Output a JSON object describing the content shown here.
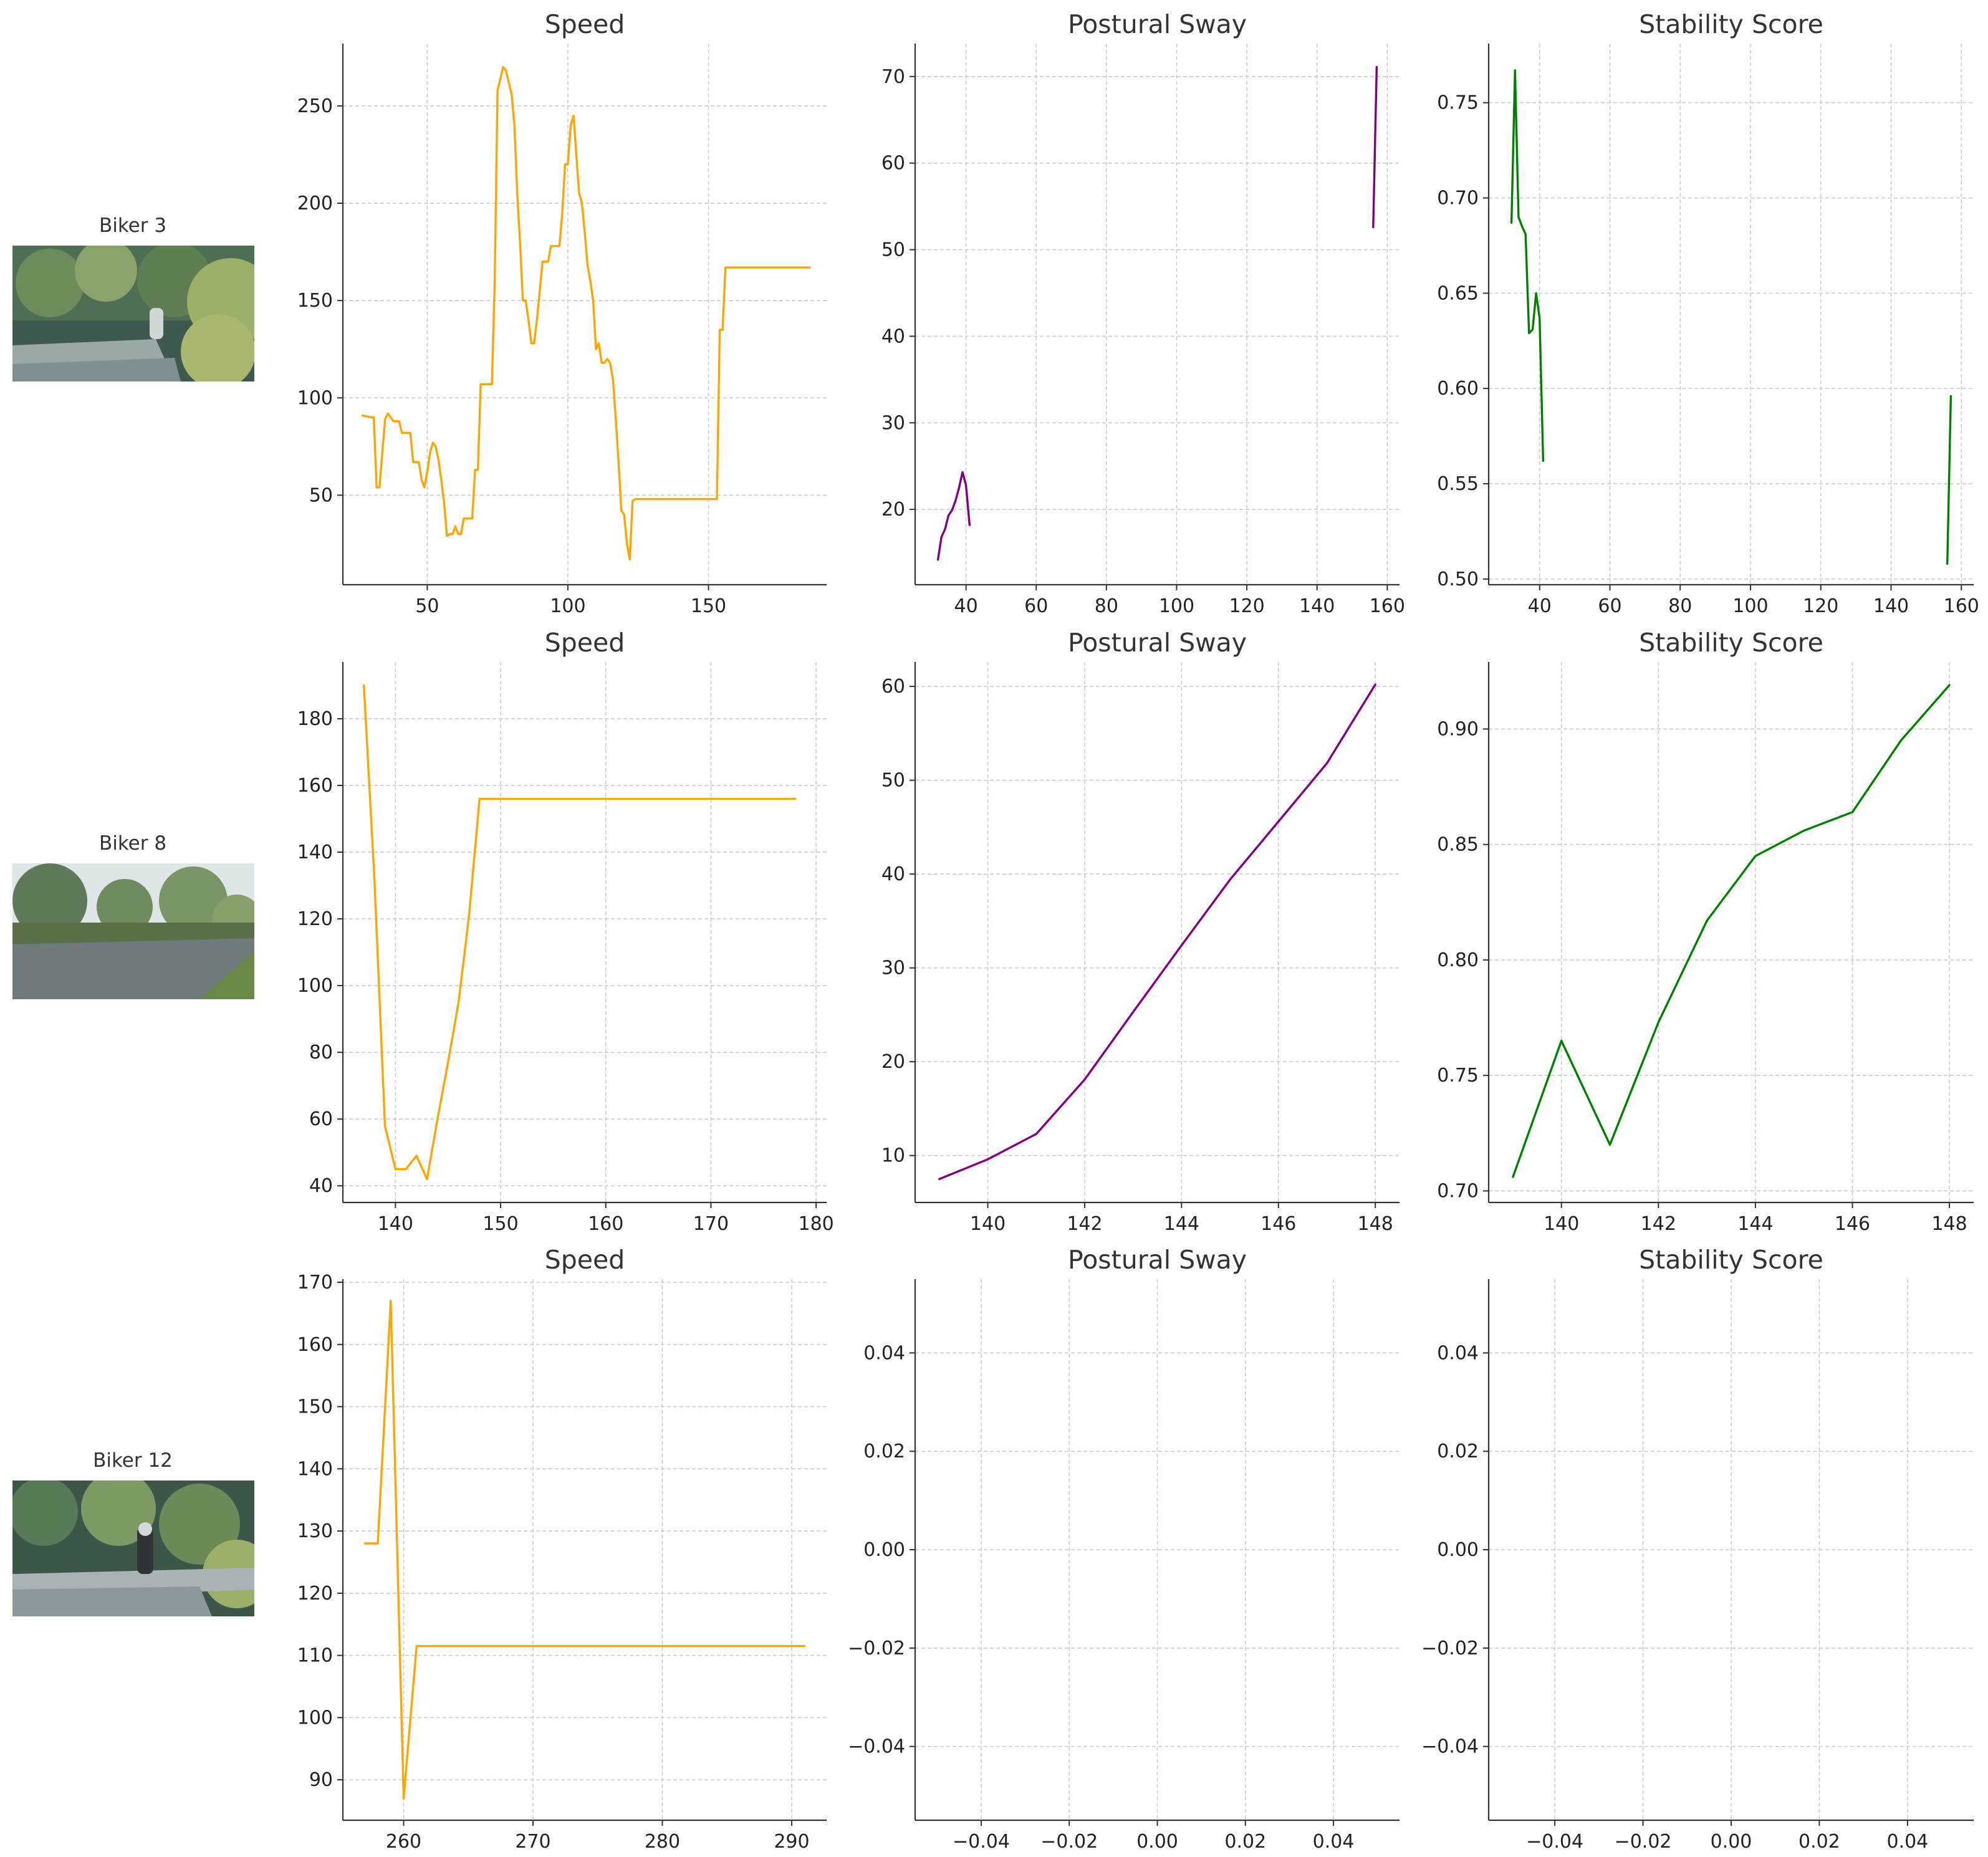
{
  "colors": {
    "speed": "#FFA500",
    "sway": "#800080",
    "stability": "#008000",
    "grid": "#cccccc",
    "axis": "#333333"
  },
  "rows": [
    {
      "label": "Biker 3",
      "thumb_icon": "road-forest-photo-icon",
      "thumb_rider": true
    },
    {
      "label": "Biker 8",
      "thumb_icon": "road-open-photo-icon",
      "thumb_rider": false
    },
    {
      "label": "Biker 12",
      "thumb_icon": "road-forest-photo-icon",
      "thumb_rider": true
    }
  ],
  "chart_data": [
    {
      "row": 0,
      "col": 0,
      "type": "line",
      "title": "Speed",
      "xlabel": "",
      "ylabel": "",
      "grid": true,
      "color": "#FFA500",
      "xlim": [
        20,
        192
      ],
      "ylim": [
        4,
        282
      ],
      "xticks": [
        50,
        100,
        150
      ],
      "yticks": [
        50,
        100,
        150,
        200,
        250
      ],
      "series": [
        {
          "x": [
            27,
            30,
            31,
            32,
            33,
            35,
            36,
            37,
            38,
            40,
            41,
            44,
            45,
            47,
            48,
            49,
            50,
            51,
            52,
            53,
            54,
            55,
            56,
            57,
            58,
            59,
            60,
            61,
            62,
            63,
            64,
            65,
            66,
            67,
            68,
            69,
            70,
            71,
            72,
            73,
            74,
            75,
            77,
            78,
            79,
            80,
            81,
            82,
            83,
            84,
            85,
            86,
            87,
            88,
            89,
            90,
            91,
            92,
            93,
            94,
            95,
            96,
            97,
            98,
            99,
            100,
            101,
            102,
            103,
            104,
            105,
            106,
            107,
            108,
            109,
            110,
            111,
            112,
            113,
            114,
            115,
            116,
            117,
            118,
            119,
            120,
            121,
            122,
            123,
            124,
            125,
            126,
            127,
            153,
            154,
            155,
            156,
            186
          ],
          "y": [
            91,
            90,
            90,
            54,
            54,
            89,
            92,
            90,
            88,
            88,
            82,
            82,
            67,
            67,
            58,
            54,
            62,
            72,
            77,
            75,
            68,
            58,
            46,
            29,
            30,
            30,
            34,
            30,
            30,
            38,
            38,
            38,
            38,
            63,
            63,
            107,
            107,
            107,
            107,
            107,
            160,
            258,
            270,
            268,
            262,
            256,
            240,
            205,
            180,
            150,
            150,
            140,
            128,
            128,
            140,
            155,
            170,
            170,
            170,
            178,
            178,
            178,
            178,
            195,
            220,
            220,
            240,
            245,
            225,
            205,
            200,
            185,
            168,
            160,
            150,
            125,
            128,
            118,
            118,
            120,
            118,
            110,
            90,
            68,
            42,
            40,
            25,
            17,
            47,
            48,
            48,
            48,
            48,
            48,
            135,
            135,
            167,
            167
          ]
        }
      ]
    },
    {
      "row": 0,
      "col": 1,
      "type": "line",
      "title": "Postural Sway",
      "xlabel": "",
      "ylabel": "",
      "grid": true,
      "color": "#800080",
      "xlim": [
        25.5,
        163.5
      ],
      "ylim": [
        11.3,
        73.8
      ],
      "xticks": [
        40,
        60,
        80,
        100,
        120,
        140,
        160
      ],
      "yticks": [
        20,
        30,
        40,
        50,
        60,
        70
      ],
      "series": [
        {
          "x": [
            32,
            33,
            34,
            35,
            36,
            37,
            38,
            39,
            40,
            41,
            null,
            156,
            157
          ],
          "y": [
            14.2,
            16.8,
            17.7,
            19.3,
            19.9,
            21,
            22.5,
            24.3,
            22.8,
            18.2,
            null,
            52.6,
            71.1
          ]
        }
      ]
    },
    {
      "row": 0,
      "col": 2,
      "type": "line",
      "title": "Stability Score",
      "xlabel": "",
      "ylabel": "",
      "grid": true,
      "color": "#008000",
      "xlim": [
        25.5,
        163.5
      ],
      "ylim": [
        0.497,
        0.781
      ],
      "xticks": [
        40,
        60,
        80,
        100,
        120,
        140,
        160
      ],
      "yticks": [
        0.5,
        0.55,
        0.6,
        0.65,
        0.7,
        0.75
      ],
      "series": [
        {
          "x": [
            32,
            33,
            34,
            35,
            36,
            37,
            38,
            39,
            40,
            41,
            null,
            156,
            157
          ],
          "y": [
            0.687,
            0.767,
            0.69,
            0.685,
            0.681,
            0.629,
            0.631,
            0.65,
            0.637,
            0.562,
            null,
            0.508,
            0.596
          ]
        }
      ]
    },
    {
      "row": 1,
      "col": 0,
      "type": "line",
      "title": "Speed",
      "xlabel": "",
      "ylabel": "",
      "grid": true,
      "color": "#FFA500",
      "xlim": [
        135,
        181
      ],
      "ylim": [
        35,
        197
      ],
      "xticks": [
        140,
        150,
        160,
        170,
        180
      ],
      "yticks": [
        40,
        60,
        80,
        100,
        120,
        140,
        160,
        180
      ],
      "series": [
        {
          "x": [
            137,
            138,
            139,
            140,
            141,
            142,
            143,
            144,
            145,
            146,
            147,
            148,
            178
          ],
          "y": [
            190,
            132,
            58,
            45,
            45,
            49,
            42,
            60,
            77,
            95,
            121,
            156,
            156
          ]
        }
      ]
    },
    {
      "row": 1,
      "col": 1,
      "type": "line",
      "title": "Postural Sway",
      "xlabel": "",
      "ylabel": "",
      "grid": true,
      "color": "#800080",
      "xlim": [
        138.5,
        148.5
      ],
      "ylim": [
        5.0,
        62.6
      ],
      "xticks": [
        140,
        142,
        144,
        146,
        148
      ],
      "yticks": [
        10,
        20,
        30,
        40,
        50,
        60
      ],
      "series": [
        {
          "x": [
            139,
            140,
            141,
            142,
            143,
            144,
            145,
            146,
            147,
            148
          ],
          "y": [
            7.5,
            9.6,
            12.3,
            18.1,
            25.3,
            32.4,
            39.4,
            45.6,
            51.8,
            60.2
          ]
        }
      ]
    },
    {
      "row": 1,
      "col": 2,
      "type": "line",
      "title": "Stability Score",
      "xlabel": "",
      "ylabel": "",
      "grid": true,
      "color": "#008000",
      "xlim": [
        138.5,
        148.5
      ],
      "ylim": [
        0.695,
        0.929
      ],
      "xticks": [
        140,
        142,
        144,
        146,
        148
      ],
      "yticks": [
        0.7,
        0.75,
        0.8,
        0.85,
        0.9
      ],
      "series": [
        {
          "x": [
            139,
            140,
            141,
            142,
            143,
            144,
            145,
            146,
            147,
            148
          ],
          "y": [
            0.706,
            0.765,
            0.72,
            0.773,
            0.817,
            0.845,
            0.856,
            0.864,
            0.895,
            0.919
          ]
        }
      ]
    },
    {
      "row": 2,
      "col": 0,
      "type": "line",
      "title": "Speed",
      "xlabel": "",
      "ylabel": "",
      "grid": true,
      "color": "#FFA500",
      "xlim": [
        255.3,
        292.7
      ],
      "ylim": [
        83.5,
        170.5
      ],
      "xticks": [
        260,
        270,
        280,
        290
      ],
      "yticks": [
        90,
        100,
        110,
        120,
        130,
        140,
        150,
        160,
        170
      ],
      "series": [
        {
          "x": [
            257,
            258,
            259,
            260,
            261,
            291
          ],
          "y": [
            128,
            128,
            167,
            87,
            111.5,
            111.5
          ]
        }
      ]
    },
    {
      "row": 2,
      "col": 1,
      "type": "line",
      "title": "Postural Sway",
      "xlabel": "",
      "ylabel": "",
      "grid": true,
      "color": "#800080",
      "xlim": [
        -0.055,
        0.055
      ],
      "ylim": [
        -0.055,
        0.055
      ],
      "xticks": [
        -0.04,
        -0.02,
        0.0,
        0.02,
        0.04
      ],
      "yticks": [
        -0.04,
        -0.02,
        0.0,
        0.02,
        0.04
      ],
      "series": [
        {
          "x": [],
          "y": []
        }
      ]
    },
    {
      "row": 2,
      "col": 2,
      "type": "line",
      "title": "Stability Score",
      "xlabel": "",
      "ylabel": "",
      "grid": true,
      "color": "#008000",
      "xlim": [
        -0.055,
        0.055
      ],
      "ylim": [
        -0.055,
        0.055
      ],
      "xticks": [
        -0.04,
        -0.02,
        0.0,
        0.02,
        0.04
      ],
      "yticks": [
        -0.04,
        -0.02,
        0.0,
        0.02,
        0.04
      ],
      "series": [
        {
          "x": [],
          "y": []
        }
      ]
    }
  ]
}
